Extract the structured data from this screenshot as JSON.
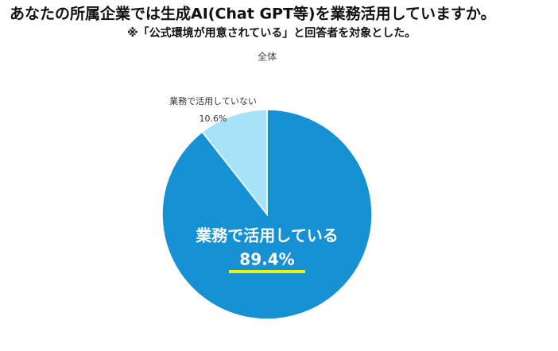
{
  "chart_data": {
    "type": "pie",
    "title": "あなたの所属企業では生成AI(Chat GPT等)を業務活用していますか。",
    "subtitle": "※「公式環境が用意されている」と回答者を対象とした。",
    "label": "全体",
    "categories": [
      "業務で活用している",
      "業務で活用していない"
    ],
    "values": [
      89.4,
      10.6
    ],
    "value_labels": [
      "89.4%",
      "10.6%"
    ],
    "colors": [
      "#1591d4",
      "#a6e3f8"
    ]
  }
}
